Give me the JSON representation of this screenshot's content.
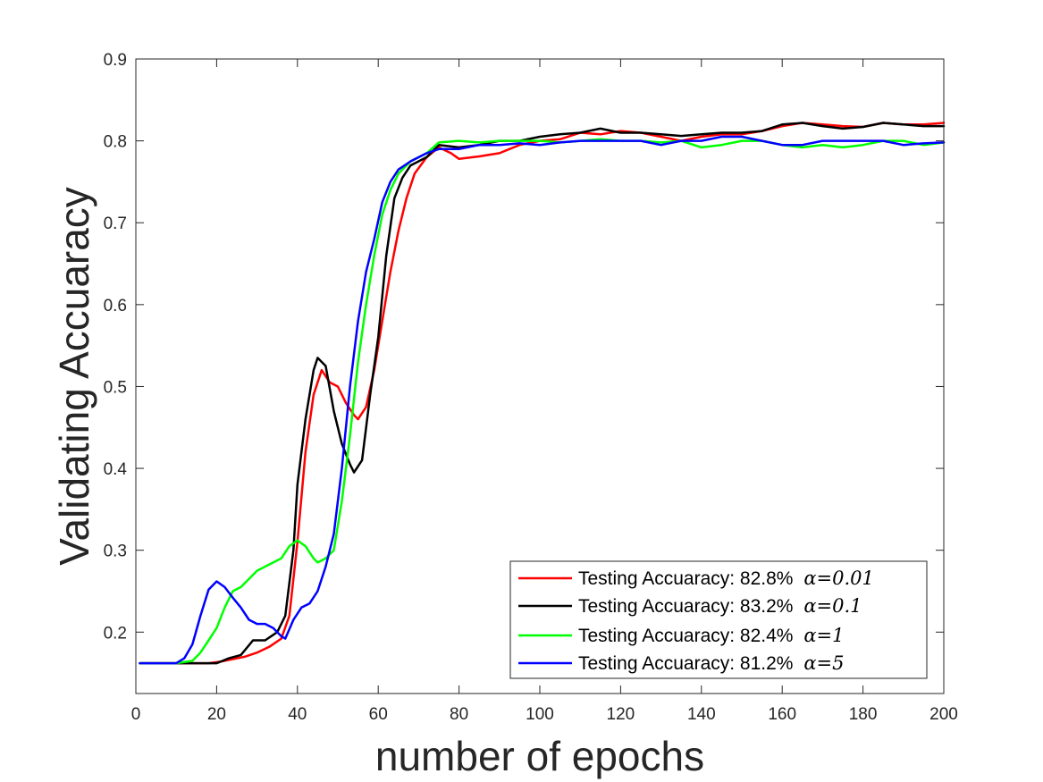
{
  "chart_data": {
    "type": "line",
    "title": "",
    "xlabel": "number of epochs",
    "ylabel": "Validating Accuaracy",
    "xlim": [
      0,
      200
    ],
    "ylim": [
      0.125,
      0.9
    ],
    "xticks": [
      0,
      20,
      40,
      60,
      80,
      100,
      120,
      140,
      160,
      180,
      200
    ],
    "yticks": [
      0.2,
      0.3,
      0.4,
      0.5,
      0.6,
      0.7,
      0.8,
      0.9
    ],
    "xtick_labels": [
      "0",
      "20",
      "40",
      "60",
      "80",
      "100",
      "120",
      "140",
      "160",
      "180",
      "200"
    ],
    "ytick_labels": [
      "0.2",
      "0.3",
      "0.4",
      "0.5",
      "0.6",
      "0.7",
      "0.8",
      "0.9"
    ],
    "grid": false,
    "legend_position": "bottom-right",
    "series": [
      {
        "name": "Testing Accuaracy: 82.8%",
        "alpha_label": "α=0.01",
        "color": "#ff0000",
        "points": [
          [
            1,
            0.162
          ],
          [
            10,
            0.162
          ],
          [
            18,
            0.162
          ],
          [
            21,
            0.164
          ],
          [
            24,
            0.167
          ],
          [
            27,
            0.17
          ],
          [
            30,
            0.175
          ],
          [
            33,
            0.182
          ],
          [
            36,
            0.192
          ],
          [
            38,
            0.22
          ],
          [
            40,
            0.31
          ],
          [
            42,
            0.42
          ],
          [
            44,
            0.49
          ],
          [
            46,
            0.52
          ],
          [
            48,
            0.505
          ],
          [
            50,
            0.5
          ],
          [
            52,
            0.48
          ],
          [
            54,
            0.465
          ],
          [
            55,
            0.46
          ],
          [
            57,
            0.475
          ],
          [
            59,
            0.52
          ],
          [
            61,
            0.58
          ],
          [
            63,
            0.64
          ],
          [
            65,
            0.69
          ],
          [
            67,
            0.73
          ],
          [
            69,
            0.76
          ],
          [
            72,
            0.78
          ],
          [
            75,
            0.792
          ],
          [
            78,
            0.785
          ],
          [
            80,
            0.778
          ],
          [
            85,
            0.781
          ],
          [
            90,
            0.785
          ],
          [
            95,
            0.795
          ],
          [
            100,
            0.8
          ],
          [
            105,
            0.802
          ],
          [
            110,
            0.81
          ],
          [
            115,
            0.808
          ],
          [
            120,
            0.812
          ],
          [
            125,
            0.81
          ],
          [
            130,
            0.805
          ],
          [
            135,
            0.8
          ],
          [
            140,
            0.805
          ],
          [
            145,
            0.808
          ],
          [
            150,
            0.808
          ],
          [
            155,
            0.812
          ],
          [
            160,
            0.818
          ],
          [
            165,
            0.822
          ],
          [
            170,
            0.82
          ],
          [
            175,
            0.818
          ],
          [
            180,
            0.817
          ],
          [
            185,
            0.822
          ],
          [
            190,
            0.82
          ],
          [
            195,
            0.82
          ],
          [
            200,
            0.822
          ]
        ]
      },
      {
        "name": "Testing Accuaracy: 83.2%",
        "alpha_label": "α=0.1",
        "color": "#000000",
        "points": [
          [
            1,
            0.162
          ],
          [
            10,
            0.162
          ],
          [
            20,
            0.162
          ],
          [
            23,
            0.168
          ],
          [
            26,
            0.172
          ],
          [
            29,
            0.19
          ],
          [
            32,
            0.19
          ],
          [
            35,
            0.2
          ],
          [
            37,
            0.22
          ],
          [
            39,
            0.3
          ],
          [
            40,
            0.38
          ],
          [
            42,
            0.46
          ],
          [
            44,
            0.52
          ],
          [
            45,
            0.535
          ],
          [
            47,
            0.525
          ],
          [
            49,
            0.47
          ],
          [
            51,
            0.43
          ],
          [
            53,
            0.405
          ],
          [
            54,
            0.395
          ],
          [
            56,
            0.41
          ],
          [
            58,
            0.49
          ],
          [
            60,
            0.56
          ],
          [
            62,
            0.66
          ],
          [
            64,
            0.73
          ],
          [
            66,
            0.755
          ],
          [
            68,
            0.77
          ],
          [
            72,
            0.78
          ],
          [
            75,
            0.795
          ],
          [
            80,
            0.792
          ],
          [
            85,
            0.795
          ],
          [
            90,
            0.8
          ],
          [
            95,
            0.8
          ],
          [
            100,
            0.805
          ],
          [
            105,
            0.808
          ],
          [
            110,
            0.81
          ],
          [
            115,
            0.815
          ],
          [
            120,
            0.81
          ],
          [
            125,
            0.81
          ],
          [
            130,
            0.808
          ],
          [
            135,
            0.806
          ],
          [
            140,
            0.808
          ],
          [
            145,
            0.81
          ],
          [
            150,
            0.81
          ],
          [
            155,
            0.812
          ],
          [
            160,
            0.82
          ],
          [
            165,
            0.822
          ],
          [
            170,
            0.818
          ],
          [
            175,
            0.815
          ],
          [
            180,
            0.817
          ],
          [
            185,
            0.822
          ],
          [
            190,
            0.82
          ],
          [
            195,
            0.818
          ],
          [
            200,
            0.818
          ]
        ]
      },
      {
        "name": "Testing Accuaracy: 82.4%",
        "alpha_label": "α=1",
        "color": "#00ff00",
        "points": [
          [
            1,
            0.162
          ],
          [
            10,
            0.162
          ],
          [
            14,
            0.165
          ],
          [
            16,
            0.175
          ],
          [
            18,
            0.19
          ],
          [
            20,
            0.205
          ],
          [
            22,
            0.23
          ],
          [
            24,
            0.25
          ],
          [
            26,
            0.255
          ],
          [
            28,
            0.265
          ],
          [
            30,
            0.275
          ],
          [
            32,
            0.28
          ],
          [
            34,
            0.285
          ],
          [
            36,
            0.29
          ],
          [
            38,
            0.305
          ],
          [
            40,
            0.312
          ],
          [
            42,
            0.305
          ],
          [
            44,
            0.29
          ],
          [
            45,
            0.285
          ],
          [
            47,
            0.29
          ],
          [
            49,
            0.3
          ],
          [
            51,
            0.36
          ],
          [
            53,
            0.44
          ],
          [
            55,
            0.53
          ],
          [
            57,
            0.6
          ],
          [
            59,
            0.66
          ],
          [
            61,
            0.71
          ],
          [
            63,
            0.74
          ],
          [
            65,
            0.76
          ],
          [
            68,
            0.775
          ],
          [
            72,
            0.785
          ],
          [
            75,
            0.798
          ],
          [
            80,
            0.8
          ],
          [
            85,
            0.798
          ],
          [
            90,
            0.8
          ],
          [
            95,
            0.8
          ],
          [
            100,
            0.8
          ],
          [
            105,
            0.798
          ],
          [
            110,
            0.8
          ],
          [
            115,
            0.802
          ],
          [
            120,
            0.8
          ],
          [
            125,
            0.8
          ],
          [
            130,
            0.798
          ],
          [
            135,
            0.8
          ],
          [
            140,
            0.792
          ],
          [
            145,
            0.795
          ],
          [
            150,
            0.8
          ],
          [
            155,
            0.8
          ],
          [
            160,
            0.795
          ],
          [
            165,
            0.792
          ],
          [
            170,
            0.795
          ],
          [
            175,
            0.792
          ],
          [
            180,
            0.795
          ],
          [
            185,
            0.8
          ],
          [
            190,
            0.8
          ],
          [
            195,
            0.795
          ],
          [
            200,
            0.798
          ]
        ]
      },
      {
        "name": "Testing Accuaracy: 81.2%",
        "alpha_label": "α=5",
        "color": "#0000ff",
        "points": [
          [
            1,
            0.162
          ],
          [
            10,
            0.162
          ],
          [
            12,
            0.168
          ],
          [
            14,
            0.185
          ],
          [
            16,
            0.22
          ],
          [
            18,
            0.252
          ],
          [
            20,
            0.262
          ],
          [
            22,
            0.255
          ],
          [
            24,
            0.242
          ],
          [
            26,
            0.23
          ],
          [
            28,
            0.215
          ],
          [
            30,
            0.21
          ],
          [
            32,
            0.21
          ],
          [
            34,
            0.205
          ],
          [
            36,
            0.195
          ],
          [
            37,
            0.192
          ],
          [
            39,
            0.215
          ],
          [
            41,
            0.23
          ],
          [
            43,
            0.235
          ],
          [
            45,
            0.25
          ],
          [
            47,
            0.28
          ],
          [
            49,
            0.32
          ],
          [
            51,
            0.4
          ],
          [
            53,
            0.5
          ],
          [
            55,
            0.58
          ],
          [
            57,
            0.64
          ],
          [
            59,
            0.68
          ],
          [
            61,
            0.725
          ],
          [
            63,
            0.75
          ],
          [
            65,
            0.765
          ],
          [
            68,
            0.775
          ],
          [
            72,
            0.785
          ],
          [
            75,
            0.79
          ],
          [
            80,
            0.79
          ],
          [
            85,
            0.795
          ],
          [
            90,
            0.795
          ],
          [
            95,
            0.797
          ],
          [
            100,
            0.795
          ],
          [
            105,
            0.798
          ],
          [
            110,
            0.8
          ],
          [
            115,
            0.8
          ],
          [
            120,
            0.8
          ],
          [
            125,
            0.8
          ],
          [
            130,
            0.795
          ],
          [
            135,
            0.8
          ],
          [
            140,
            0.8
          ],
          [
            145,
            0.805
          ],
          [
            150,
            0.805
          ],
          [
            155,
            0.8
          ],
          [
            160,
            0.795
          ],
          [
            165,
            0.795
          ],
          [
            170,
            0.8
          ],
          [
            175,
            0.8
          ],
          [
            180,
            0.8
          ],
          [
            185,
            0.8
          ],
          [
            190,
            0.795
          ],
          [
            195,
            0.797
          ],
          [
            200,
            0.798
          ]
        ]
      }
    ]
  }
}
